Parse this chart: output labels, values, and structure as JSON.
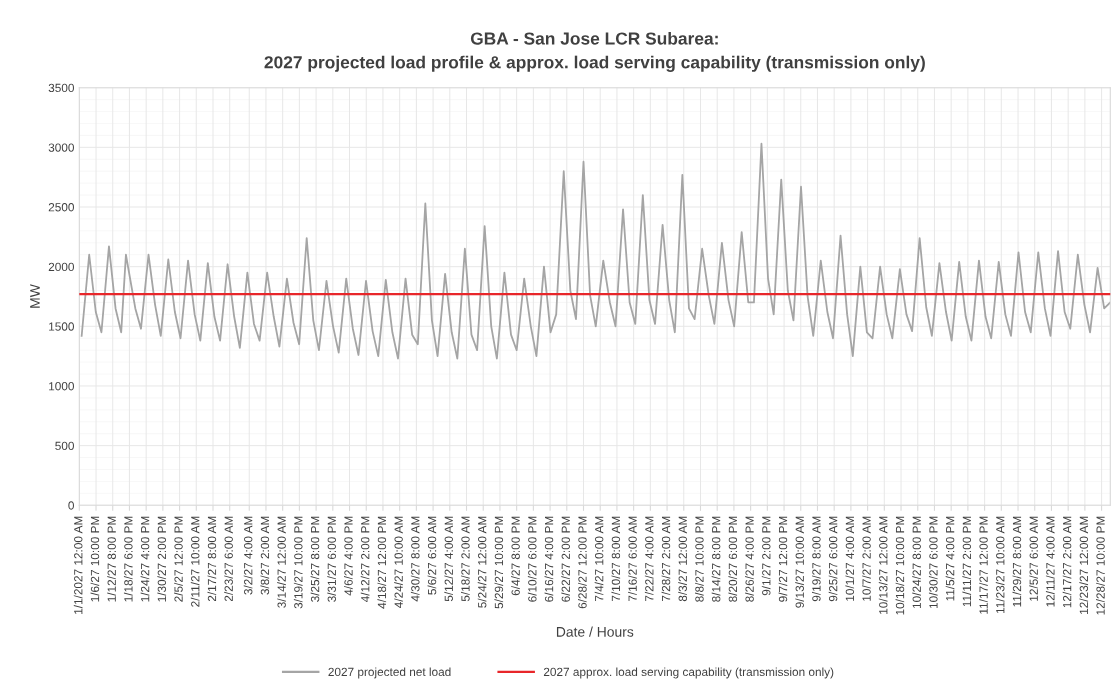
{
  "chart_data": {
    "type": "line",
    "title": "GBA - San Jose LCR Subarea:\n2027 projected load profile & approx. load serving capability (transmission only)",
    "xlabel": "Date / Hours",
    "ylabel": "MW",
    "xlim": [
      "2027-01-01T00:00",
      "2028-01-01T00:00"
    ],
    "ylim": [
      0,
      3500
    ],
    "yticks": [
      0,
      500,
      1000,
      1500,
      2000,
      2500,
      3000,
      3500
    ],
    "xticks": [
      {
        "value": "2027-01-01T00:00",
        "label": "1/1/2027 12:00 AM"
      },
      {
        "value": "2027-01-06T22:00",
        "label": "1/6/27 10:00 PM"
      },
      {
        "value": "2027-01-12T20:00",
        "label": "1/12/27 8:00 PM"
      },
      {
        "value": "2027-01-18T18:00",
        "label": "1/18/27 6:00 PM"
      },
      {
        "value": "2027-01-24T16:00",
        "label": "1/24/27 4:00 PM"
      },
      {
        "value": "2027-01-30T14:00",
        "label": "1/30/27 2:00 PM"
      },
      {
        "value": "2027-02-05T12:00",
        "label": "2/5/27 12:00 PM"
      },
      {
        "value": "2027-02-11T10:00",
        "label": "2/11/27 10:00 AM"
      },
      {
        "value": "2027-02-17T08:00",
        "label": "2/17/27 8:00 AM"
      },
      {
        "value": "2027-02-23T06:00",
        "label": "2/23/27 6:00 AM"
      },
      {
        "value": "2027-03-02T04:00",
        "label": "3/2/27 4:00 AM"
      },
      {
        "value": "2027-03-08T02:00",
        "label": "3/8/27 2:00 AM"
      },
      {
        "value": "2027-03-14T00:00",
        "label": "3/14/27 12:00 AM"
      },
      {
        "value": "2027-03-19T22:00",
        "label": "3/19/27 10:00 PM"
      },
      {
        "value": "2027-03-25T20:00",
        "label": "3/25/27 8:00 PM"
      },
      {
        "value": "2027-03-31T18:00",
        "label": "3/31/27 6:00 PM"
      },
      {
        "value": "2027-04-06T16:00",
        "label": "4/6/27 4:00 PM"
      },
      {
        "value": "2027-04-12T14:00",
        "label": "4/12/27 2:00 PM"
      },
      {
        "value": "2027-04-18T12:00",
        "label": "4/18/27 12:00 PM"
      },
      {
        "value": "2027-04-24T10:00",
        "label": "4/24/27 10:00 AM"
      },
      {
        "value": "2027-04-30T08:00",
        "label": "4/30/27 8:00 AM"
      },
      {
        "value": "2027-05-06T06:00",
        "label": "5/6/27 6:00 AM"
      },
      {
        "value": "2027-05-12T04:00",
        "label": "5/12/27 4:00 AM"
      },
      {
        "value": "2027-05-18T02:00",
        "label": "5/18/27 2:00 AM"
      },
      {
        "value": "2027-05-24T00:00",
        "label": "5/24/27 12:00 AM"
      },
      {
        "value": "2027-05-29T22:00",
        "label": "5/29/27 10:00 PM"
      },
      {
        "value": "2027-06-04T20:00",
        "label": "6/4/27 8:00 PM"
      },
      {
        "value": "2027-06-10T18:00",
        "label": "6/10/27 6:00 PM"
      },
      {
        "value": "2027-06-16T16:00",
        "label": "6/16/27 4:00 PM"
      },
      {
        "value": "2027-06-22T14:00",
        "label": "6/22/27 2:00 PM"
      },
      {
        "value": "2027-06-28T12:00",
        "label": "6/28/27 12:00 PM"
      },
      {
        "value": "2027-07-04T10:00",
        "label": "7/4/27 10:00 AM"
      },
      {
        "value": "2027-07-10T08:00",
        "label": "7/10/27 8:00 AM"
      },
      {
        "value": "2027-07-16T06:00",
        "label": "7/16/27 6:00 AM"
      },
      {
        "value": "2027-07-22T04:00",
        "label": "7/22/27 4:00 AM"
      },
      {
        "value": "2027-07-28T02:00",
        "label": "7/28/27 2:00 AM"
      },
      {
        "value": "2027-08-03T00:00",
        "label": "8/3/27 12:00 AM"
      },
      {
        "value": "2027-08-08T22:00",
        "label": "8/8/27 10:00 PM"
      },
      {
        "value": "2027-08-14T20:00",
        "label": "8/14/27 8:00 PM"
      },
      {
        "value": "2027-08-20T18:00",
        "label": "8/20/27 6:00 PM"
      },
      {
        "value": "2027-08-26T16:00",
        "label": "8/26/27 4:00 PM"
      },
      {
        "value": "2027-09-01T14:00",
        "label": "9/1/27 2:00 PM"
      },
      {
        "value": "2027-09-07T12:00",
        "label": "9/7/27 12:00 PM"
      },
      {
        "value": "2027-09-13T10:00",
        "label": "9/13/27 10:00 AM"
      },
      {
        "value": "2027-09-19T08:00",
        "label": "9/19/27 8:00 AM"
      },
      {
        "value": "2027-09-25T06:00",
        "label": "9/25/27 6:00 AM"
      },
      {
        "value": "2027-10-01T04:00",
        "label": "10/1/27 4:00 AM"
      },
      {
        "value": "2027-10-07T02:00",
        "label": "10/7/27 2:00 AM"
      },
      {
        "value": "2027-10-13T00:00",
        "label": "10/13/27 12:00 AM"
      },
      {
        "value": "2027-10-18T22:00",
        "label": "10/18/27 10:00 PM"
      },
      {
        "value": "2027-10-24T20:00",
        "label": "10/24/27 8:00 PM"
      },
      {
        "value": "2027-10-30T18:00",
        "label": "10/30/27 6:00 PM"
      },
      {
        "value": "2027-11-05T16:00",
        "label": "11/5/27 4:00 PM"
      },
      {
        "value": "2027-11-11T14:00",
        "label": "11/11/27 2:00 PM"
      },
      {
        "value": "2027-11-17T12:00",
        "label": "11/17/27 12:00 PM"
      },
      {
        "value": "2027-11-23T10:00",
        "label": "11/23/27 10:00 AM"
      },
      {
        "value": "2027-11-29T08:00",
        "label": "11/29/27 8:00 AM"
      },
      {
        "value": "2027-12-05T06:00",
        "label": "12/5/27 6:00 AM"
      },
      {
        "value": "2027-12-11T04:00",
        "label": "12/11/27 4:00 AM"
      },
      {
        "value": "2027-12-17T02:00",
        "label": "12/17/27 2:00 AM"
      },
      {
        "value": "2027-12-23T00:00",
        "label": "12/23/27 12:00 AM"
      },
      {
        "value": "2027-12-28T22:00",
        "label": "12/28/27 10:00 PM"
      }
    ],
    "grid": true,
    "legend": "bottom",
    "marker": "none",
    "line_style": "solid",
    "series": [
      {
        "name": "2027 projected net load",
        "color": "#a5a5a5",
        "x": [
          "2027-01-01T20:00",
          "2027-01-04T12:00",
          "2027-01-06T20:00",
          "2027-01-08T20:00",
          "2027-01-11T12:00",
          "2027-01-13T20:00",
          "2027-01-15T20:00",
          "2027-01-17T12:00",
          "2027-01-20T20:00",
          "2027-01-22T20:00",
          "2027-01-25T12:00",
          "2027-01-27T20:00",
          "2027-01-29T20:00",
          "2027-02-01T12:00",
          "2027-02-03T20:00",
          "2027-02-05T20:00",
          "2027-02-08T12:00",
          "2027-02-10T20:00",
          "2027-02-12T20:00",
          "2027-02-15T12:00",
          "2027-02-17T20:00",
          "2027-02-19T20:00",
          "2027-02-22T12:00",
          "2027-02-24T20:00",
          "2027-02-26T20:00",
          "2027-03-01T12:00",
          "2027-03-03T20:00",
          "2027-03-05T20:00",
          "2027-03-08T12:00",
          "2027-03-10T20:00",
          "2027-03-12T20:00",
          "2027-03-15T12:00",
          "2027-03-17T20:00",
          "2027-03-19T20:00",
          "2027-03-22T12:00",
          "2027-03-24T20:00",
          "2027-03-26T20:00",
          "2027-03-29T12:00",
          "2027-03-31T20:00",
          "2027-04-02T20:00",
          "2027-04-05T12:00",
          "2027-04-07T20:00",
          "2027-04-09T20:00",
          "2027-04-12T12:00",
          "2027-04-14T20:00",
          "2027-04-16T20:00",
          "2027-04-19T12:00",
          "2027-04-21T20:00",
          "2027-04-23T20:00",
          "2027-04-26T12:00",
          "2027-04-28T20:00",
          "2027-04-30T20:00",
          "2027-05-03T12:00",
          "2027-05-05T20:00",
          "2027-05-07T20:00",
          "2027-05-10T12:00",
          "2027-05-12T20:00",
          "2027-05-14T20:00",
          "2027-05-17T12:00",
          "2027-05-19T20:00",
          "2027-05-21T20:00",
          "2027-05-24T12:00",
          "2027-05-26T20:00",
          "2027-05-28T20:00",
          "2027-05-31T12:00",
          "2027-06-02T20:00",
          "2027-06-04T20:00",
          "2027-06-07T12:00",
          "2027-06-09T20:00",
          "2027-06-11T20:00",
          "2027-06-14T12:00",
          "2027-06-16T20:00",
          "2027-06-18T20:00",
          "2027-06-21T12:00",
          "2027-06-23T20:00",
          "2027-06-25T20:00",
          "2027-06-28T12:00",
          "2027-06-30T20:00",
          "2027-07-02T20:00",
          "2027-07-05T12:00",
          "2027-07-07T20:00",
          "2027-07-09T20:00",
          "2027-07-12T12:00",
          "2027-07-14T20:00",
          "2027-07-16T20:00",
          "2027-07-19T12:00",
          "2027-07-21T20:00",
          "2027-07-23T20:00",
          "2027-07-26T12:00",
          "2027-07-28T20:00",
          "2027-07-30T20:00",
          "2027-08-02T12:00",
          "2027-08-04T20:00",
          "2027-08-06T20:00",
          "2027-08-09T12:00",
          "2027-08-11T20:00",
          "2027-08-13T20:00",
          "2027-08-16T12:00",
          "2027-08-18T20:00",
          "2027-08-20T20:00",
          "2027-08-23T12:00",
          "2027-08-25T20:00",
          "2027-08-27T20:00",
          "2027-08-30T12:00",
          "2027-09-01T20:00",
          "2027-09-03T20:00",
          "2027-09-06T12:00",
          "2027-09-08T20:00",
          "2027-09-10T20:00",
          "2027-09-13T12:00",
          "2027-09-15T20:00",
          "2027-09-17T20:00",
          "2027-09-20T12:00",
          "2027-09-22T20:00",
          "2027-09-24T20:00",
          "2027-09-27T12:00",
          "2027-09-29T20:00",
          "2027-10-01T20:00",
          "2027-10-04T12:00",
          "2027-10-06T20:00",
          "2027-10-08T20:00",
          "2027-10-11T12:00",
          "2027-10-13T20:00",
          "2027-10-15T20:00",
          "2027-10-18T12:00",
          "2027-10-20T20:00",
          "2027-10-22T20:00",
          "2027-10-25T12:00",
          "2027-10-27T20:00",
          "2027-10-29T20:00",
          "2027-11-01T12:00",
          "2027-11-03T20:00",
          "2027-11-05T20:00",
          "2027-11-08T12:00",
          "2027-11-10T20:00",
          "2027-11-12T20:00",
          "2027-11-15T12:00",
          "2027-11-17T20:00",
          "2027-11-19T20:00",
          "2027-11-22T12:00",
          "2027-11-24T20:00",
          "2027-11-26T20:00",
          "2027-11-29T12:00",
          "2027-12-01T20:00",
          "2027-12-03T20:00",
          "2027-12-06T12:00",
          "2027-12-08T20:00",
          "2027-12-10T20:00",
          "2027-12-13T12:00",
          "2027-12-15T20:00",
          "2027-12-17T20:00",
          "2027-12-20T12:00",
          "2027-12-22T20:00",
          "2027-12-24T20:00",
          "2027-12-27T12:00",
          "2027-12-29T20:00",
          "2027-12-31T23:00"
        ],
        "values": [
          1420,
          2100,
          1620,
          1450,
          2170,
          1650,
          1450,
          2100,
          1650,
          1480,
          2100,
          1680,
          1420,
          2060,
          1620,
          1400,
          2050,
          1600,
          1380,
          2030,
          1580,
          1380,
          2020,
          1580,
          1320,
          1950,
          1520,
          1380,
          1950,
          1580,
          1330,
          1900,
          1530,
          1350,
          2240,
          1550,
          1300,
          1880,
          1500,
          1280,
          1900,
          1480,
          1260,
          1880,
          1460,
          1250,
          1890,
          1450,
          1230,
          1900,
          1430,
          1350,
          2530,
          1550,
          1250,
          1940,
          1450,
          1230,
          2150,
          1430,
          1300,
          2340,
          1500,
          1230,
          1950,
          1430,
          1300,
          1900,
          1500,
          1250,
          2000,
          1450,
          1600,
          2800,
          1800,
          1560,
          2880,
          1760,
          1500,
          2050,
          1700,
          1500,
          2480,
          1700,
          1520,
          2600,
          1720,
          1520,
          2350,
          1720,
          1450,
          2770,
          1650,
          1560,
          2150,
          1760,
          1520,
          2200,
          1720,
          1500,
          2290,
          1700,
          1700,
          3030,
          1900,
          1600,
          2730,
          1800,
          1550,
          2670,
          1750,
          1420,
          2050,
          1620,
          1400,
          2260,
          1600,
          1250,
          2000,
          1450,
          1400,
          2000,
          1600,
          1400,
          1980,
          1600,
          1460,
          2240,
          1660,
          1420,
          2030,
          1620,
          1380,
          2040,
          1580,
          1380,
          2050,
          1580,
          1400,
          2040,
          1600,
          1420,
          2120,
          1620,
          1450,
          2120,
          1650,
          1420,
          2130,
          1620,
          1480,
          2100,
          1680,
          1450,
          1990,
          1650,
          1700
        ]
      },
      {
        "name": "2027 approx. load serving capability (transmission only)",
        "color": "#e8262a",
        "x": [
          "2027-01-01T00:00",
          "2028-01-01T00:00"
        ],
        "values": [
          1770,
          1770
        ]
      }
    ]
  }
}
